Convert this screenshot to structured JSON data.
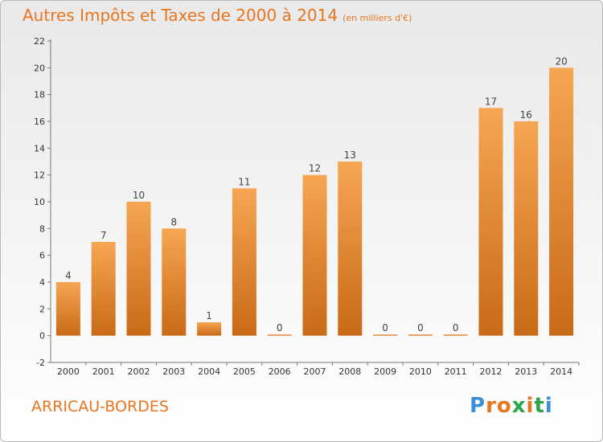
{
  "title": {
    "main": "Autres Impôts et Taxes de 2000 à 2014",
    "unit": "(en milliers d'€)"
  },
  "commune": "ARRICAU-BORDES",
  "brand": {
    "letters": [
      "P",
      "r",
      "o",
      "x",
      "i",
      "t",
      "i"
    ],
    "colors": [
      "#3a8fd6",
      "#e8761f",
      "#e8761f",
      "#2aa64a",
      "#e8761f",
      "#2aa64a",
      "#3a8fd6"
    ]
  },
  "colors": {
    "accent": "#e8761f",
    "bar_light": "#f6a653",
    "bar_dark": "#c96a16"
  },
  "chart_data": {
    "type": "bar",
    "title": "Autres Impôts et Taxes de 2000 à 2014",
    "subtitle": "(en milliers d'€)",
    "xlabel": "",
    "ylabel": "",
    "categories": [
      "2000",
      "2001",
      "2002",
      "2003",
      "2004",
      "2005",
      "2006",
      "2007",
      "2008",
      "2009",
      "2010",
      "2011",
      "2012",
      "2013",
      "2014"
    ],
    "values": [
      4,
      7,
      10,
      8,
      1,
      11,
      0,
      12,
      13,
      0,
      0,
      0,
      17,
      16,
      20
    ],
    "ylim": [
      -2,
      22
    ],
    "yticks": [
      -2,
      0,
      2,
      4,
      6,
      8,
      10,
      12,
      14,
      16,
      18,
      20,
      22
    ],
    "grid": false,
    "legend": "none"
  }
}
